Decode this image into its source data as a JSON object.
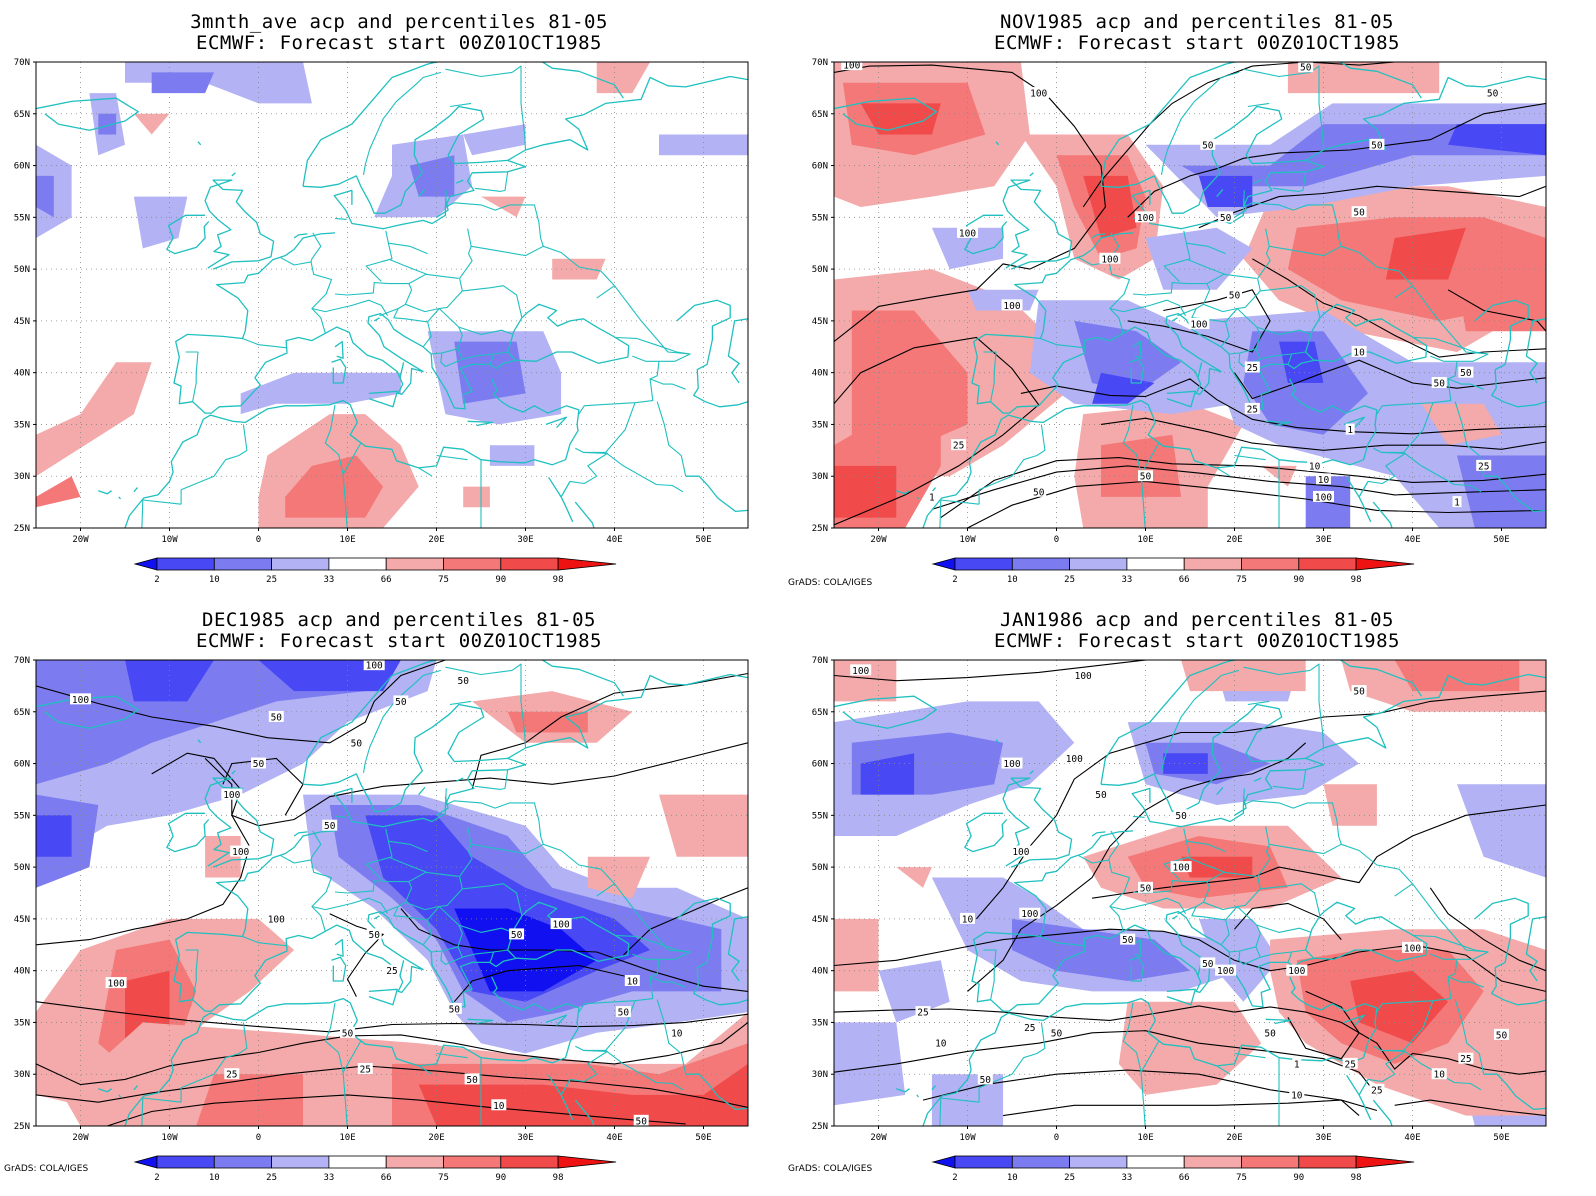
{
  "panels": [
    {
      "id": "p0",
      "title1": "3mnth_ave acp and percentiles 81-05",
      "title2": "ECMWF: Forecast start 00Z01OCT1985",
      "credit": "",
      "contours": []
    },
    {
      "id": "p1",
      "title1": "NOV1985 acp and percentiles 81-05",
      "title2": "ECMWF: Forecast start 00Z01OCT1985",
      "credit": "GrADS: COLA/IGES",
      "contours": [
        "100",
        "100",
        "100",
        "50",
        "50",
        "50",
        "50",
        "50",
        "100",
        "100",
        "100",
        "50",
        "100",
        "50",
        "25",
        "10",
        "50",
        "50",
        "10",
        "1",
        "25",
        "25",
        "1",
        "25",
        "10",
        "50",
        "50",
        "100",
        "1"
      ]
    },
    {
      "id": "p2",
      "title1": "DEC1985 acp and percentiles 81-05",
      "title2": "ECMWF: Forecast start 00Z01OCT1985",
      "credit": "GrADS: COLA/IGES",
      "contours": [
        "100",
        "100",
        "50",
        "50",
        "50",
        "50",
        "50",
        "100",
        "50",
        "100",
        "100",
        "100",
        "50",
        "50",
        "100",
        "25",
        "50",
        "10",
        "50",
        "50",
        "25",
        "50",
        "25",
        "10",
        "10",
        "50",
        "1",
        "1",
        "25",
        "10"
      ]
    },
    {
      "id": "p3",
      "title1": "JAN1986 acp and percentiles 81-05",
      "title2": "ECMWF: Forecast start 00Z01OCT1985",
      "credit": "GrADS: COLA/IGES",
      "contours": [
        "100",
        "100",
        "50",
        "100",
        "100",
        "50",
        "50",
        "100",
        "100",
        "50",
        "100",
        "50",
        "50",
        "100",
        "100",
        "50",
        "25",
        "25",
        "50",
        "10",
        "10",
        "1",
        "50",
        "25",
        "25",
        "10",
        "25",
        "50",
        "100",
        "10"
      ]
    }
  ],
  "map": {
    "lat_labels": [
      "70N",
      "65N",
      "60N",
      "55N",
      "50N",
      "45N",
      "40N",
      "35N",
      "30N",
      "25N"
    ],
    "lon_labels": [
      "20W",
      "10W",
      "0",
      "10E",
      "20E",
      "30E",
      "40E",
      "50E"
    ],
    "lon_range": [
      -25,
      55
    ],
    "lat_range": [
      25,
      70
    ]
  },
  "legend": {
    "labels": [
      "2",
      "10",
      "25",
      "33",
      "66",
      "75",
      "90",
      "98"
    ],
    "colors": [
      "#1010f0",
      "#4848f4",
      "#7c7cf0",
      "#b2b2f4",
      "#ffffff",
      "#f4aaaa",
      "#f47878",
      "#f04a4a",
      "#ee1212"
    ]
  },
  "colors": {
    "coast": "#20c0c0",
    "contour": "#000000",
    "grid": "#888888"
  }
}
